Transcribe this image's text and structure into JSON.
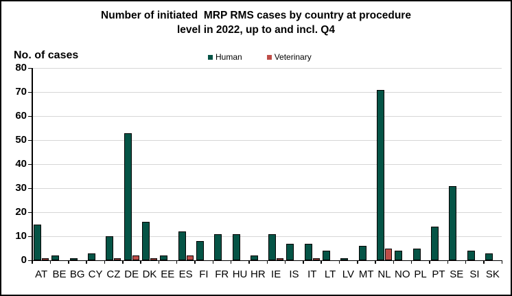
{
  "title": {
    "line1": "Number of initiated  MRP RMS cases by country at procedure",
    "line2": "level in 2022, up to and incl. Q4"
  },
  "axis": {
    "y_label": "No. of cases",
    "y_ticks": [
      0,
      10,
      20,
      30,
      40,
      50,
      60,
      70,
      80
    ]
  },
  "legend": [
    {
      "label": "Human",
      "color": "#055446"
    },
    {
      "label": "Veterinary",
      "color": "#be4d48"
    }
  ],
  "colors": {
    "human_bar": "#055446",
    "veterinary_bar": "#be4d48",
    "gridline": "#d6d6d6",
    "axis": "#000000"
  },
  "chart_data": {
    "type": "bar",
    "title": "Number of initiated MRP RMS cases by country at procedure level in 2022, up to and incl. Q4",
    "ylabel": "No. of cases",
    "xlabel": "",
    "ylim": [
      0,
      80
    ],
    "y_tick_step": 10,
    "grid": true,
    "legend_position": "top-center",
    "categories": [
      "AT",
      "BE",
      "BG",
      "CY",
      "CZ",
      "DE",
      "DK",
      "EE",
      "ES",
      "FI",
      "FR",
      "HU",
      "HR",
      "IE",
      "IS",
      "IT",
      "LT",
      "LV",
      "MT",
      "NL",
      "NO",
      "PL",
      "PT",
      "SE",
      "SI",
      "SK"
    ],
    "series": [
      {
        "name": "Human",
        "color": "#055446",
        "values": [
          15,
          2,
          1,
          3,
          10,
          53,
          16,
          2,
          12,
          8,
          11,
          11,
          2,
          11,
          7,
          7,
          4,
          1,
          6,
          71,
          4,
          5,
          14,
          31,
          4,
          3
        ]
      },
      {
        "name": "Veterinary",
        "color": "#be4d48",
        "values": [
          1,
          0,
          0,
          0,
          1,
          2,
          1,
          0,
          2,
          0,
          0,
          0,
          0,
          1,
          0,
          1,
          0,
          0,
          0,
          5,
          0,
          0,
          0,
          0,
          0,
          0
        ]
      }
    ]
  }
}
